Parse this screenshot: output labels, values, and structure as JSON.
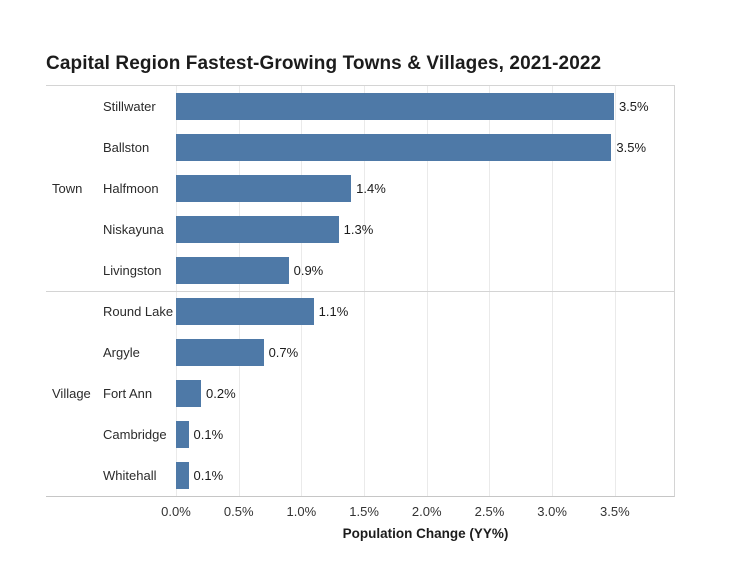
{
  "chart_data": {
    "type": "bar",
    "orientation": "horizontal",
    "title": "Capital Region Fastest-Growing Towns & Villages, 2021-2022",
    "xlabel": "Population Change (YY%)",
    "ylabel": "",
    "xlim": [
      0,
      3.98
    ],
    "x_ticks": [
      {
        "value": 0,
        "label": "0.0%"
      },
      {
        "value": 0.5,
        "label": "0.5%"
      },
      {
        "value": 1,
        "label": "1.0%"
      },
      {
        "value": 1.5,
        "label": "1.5%"
      },
      {
        "value": 2,
        "label": "2.0%"
      },
      {
        "value": 2.5,
        "label": "2.5%"
      },
      {
        "value": 3,
        "label": "3.0%"
      },
      {
        "value": 3.5,
        "label": "3.5%"
      }
    ],
    "grid": "vertical-light",
    "legend": "none",
    "bar_color": "#4E79A7",
    "groups": [
      {
        "label": "Town",
        "rows": [
          {
            "name": "Stillwater",
            "value": 3.5,
            "value_label": "3.5%"
          },
          {
            "name": "Ballston",
            "value": 3.48,
            "value_label": "3.5%"
          },
          {
            "name": "Halfmoon",
            "value": 1.4,
            "value_label": "1.4%"
          },
          {
            "name": "Niskayuna",
            "value": 1.3,
            "value_label": "1.3%"
          },
          {
            "name": "Livingston",
            "value": 0.9,
            "value_label": "0.9%"
          }
        ]
      },
      {
        "label": "Village",
        "rows": [
          {
            "name": "Round Lake",
            "value": 1.1,
            "value_label": "1.1%"
          },
          {
            "name": "Argyle",
            "value": 0.7,
            "value_label": "0.7%"
          },
          {
            "name": "Fort Ann",
            "value": 0.2,
            "value_label": "0.2%"
          },
          {
            "name": "Cambridge",
            "value": 0.1,
            "value_label": "0.1%"
          },
          {
            "name": "Whitehall",
            "value": 0.1,
            "value_label": "0.1%"
          }
        ]
      }
    ]
  }
}
